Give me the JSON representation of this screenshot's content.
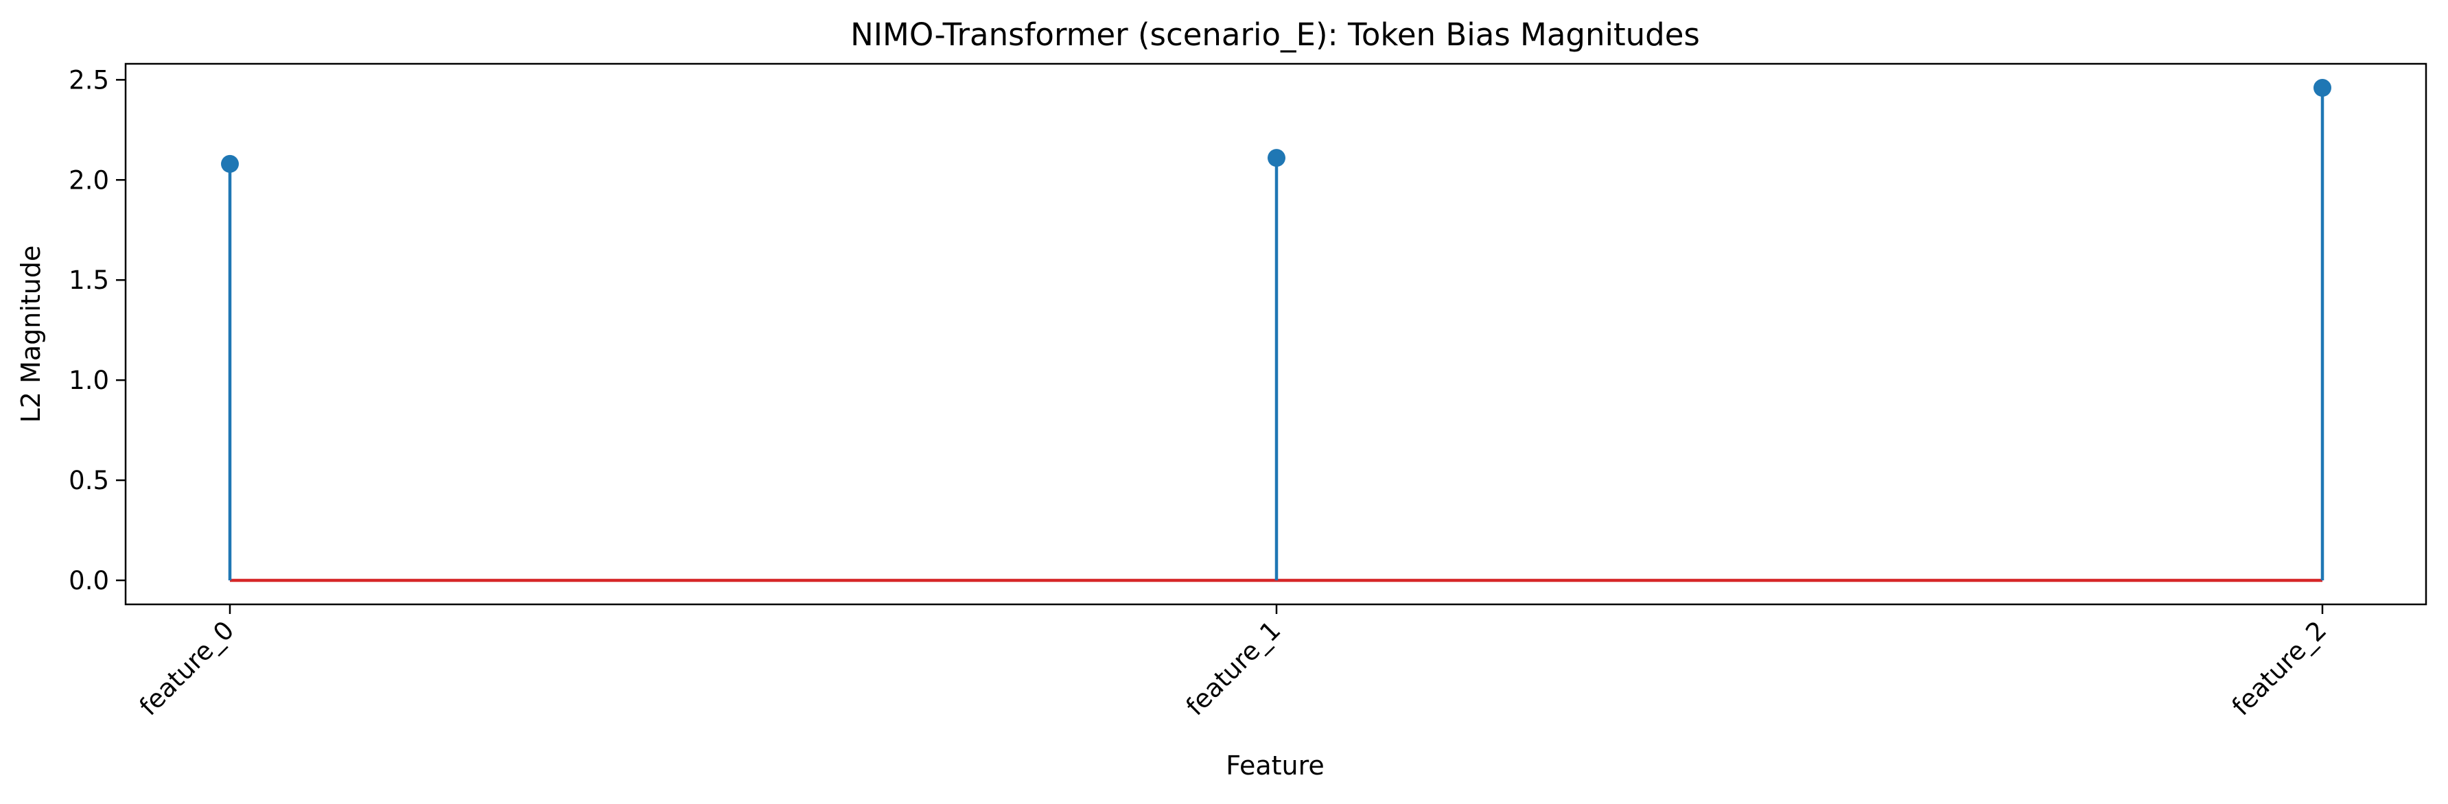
{
  "chart_data": {
    "type": "stem",
    "title": "NIMO-Transformer (scenario_E): Token Bias Magnitudes",
    "xlabel": "Feature",
    "ylabel": "L2 Magnitude",
    "categories": [
      "feature_0",
      "feature_1",
      "feature_2"
    ],
    "values": [
      2.08,
      2.11,
      2.46
    ],
    "ylim": [
      -0.12,
      2.58
    ],
    "yticks": [
      0.0,
      0.5,
      1.0,
      1.5,
      2.0,
      2.5
    ],
    "ytick_labels": [
      "0.0",
      "0.5",
      "1.0",
      "1.5",
      "2.0",
      "2.5"
    ],
    "xtick_rotation_deg": 45,
    "baseline": 0.0,
    "grid": false,
    "legend": "none",
    "colors": {
      "stem": "#1f77b4",
      "marker": "#1f77b4",
      "baseline": "#d62728",
      "axes": "#000000"
    }
  }
}
